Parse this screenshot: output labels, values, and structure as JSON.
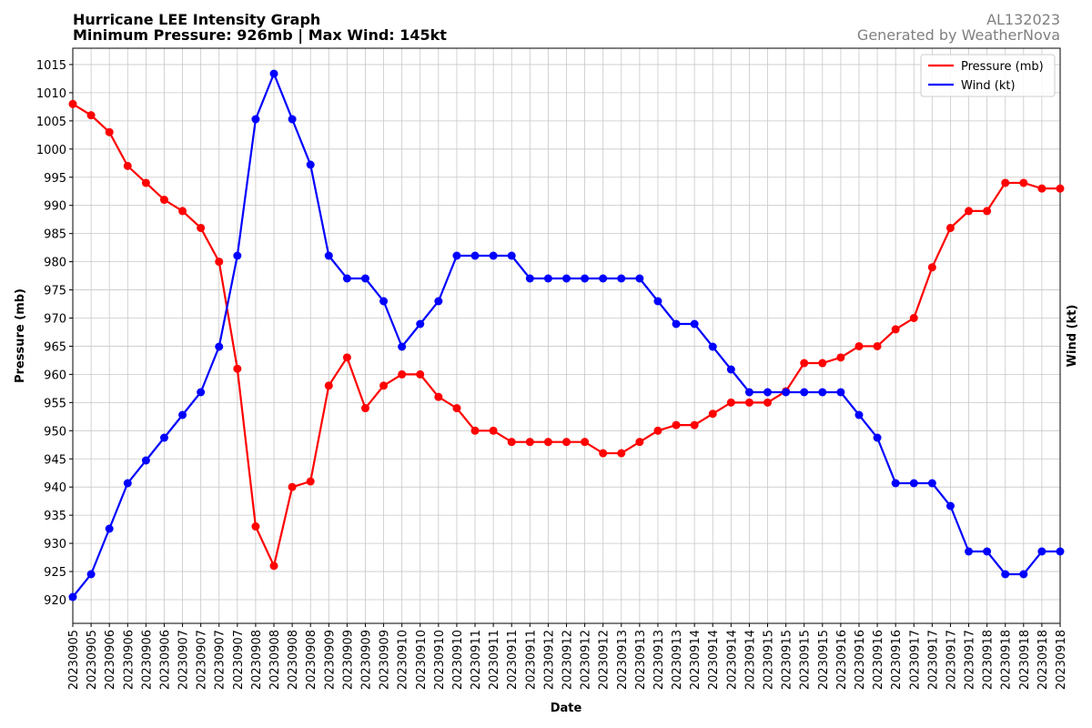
{
  "chart_data": {
    "type": "line",
    "title": "Hurricane LEE Intensity Graph",
    "subtitle": "Minimum Pressure: 926mb | Max Wind: 145kt",
    "storm_id": "AL132023",
    "credit": "Generated by WeatherNova",
    "x_label": "Date",
    "y_label": "Pressure (mb)",
    "y2_label": "Wind (kt)",
    "categories": [
      "20230905",
      "20230905",
      "20230906",
      "20230906",
      "20230906",
      "20230906",
      "20230907",
      "20230907",
      "20230907",
      "20230907",
      "20230908",
      "20230908",
      "20230908",
      "20230908",
      "20230909",
      "20230909",
      "20230909",
      "20230909",
      "20230910",
      "20230910",
      "20230910",
      "20230910",
      "20230911",
      "20230911",
      "20230911",
      "20230911",
      "20230912",
      "20230912",
      "20230912",
      "20230912",
      "20230913",
      "20230913",
      "20230913",
      "20230913",
      "20230914",
      "20230914",
      "20230914",
      "20230914",
      "20230915",
      "20230915",
      "20230915",
      "20230915",
      "20230916",
      "20230916",
      "20230916",
      "20230916",
      "20230917",
      "20230917",
      "20230917",
      "20230917",
      "20230918",
      "20230918",
      "20230918",
      "20230918",
      "20230918"
    ],
    "series": [
      {
        "name": "Pressure (mb)",
        "color": "#ff0000",
        "values": [
          1008,
          1006,
          1003,
          997,
          994,
          991,
          989,
          986,
          980,
          961,
          933,
          926,
          940,
          941,
          958,
          963,
          954,
          958,
          960,
          960,
          956,
          954,
          950,
          950,
          948,
          948,
          948,
          948,
          948,
          946,
          946,
          948,
          950,
          951,
          951,
          953,
          955,
          955,
          955,
          957,
          962,
          962,
          963,
          965,
          965,
          968,
          970,
          979,
          986,
          989,
          989,
          994,
          994,
          993,
          993
        ]
      },
      {
        "name": "Wind (kt)",
        "color": "#0000ff",
        "axis": "y2",
        "values": [
          30,
          35,
          45,
          55,
          60,
          65,
          70,
          75,
          85,
          105,
          135,
          145,
          135,
          125,
          105,
          100,
          100,
          95,
          85,
          90,
          95,
          105,
          105,
          105,
          105,
          100,
          100,
          100,
          100,
          100,
          100,
          100,
          95,
          90,
          90,
          85,
          80,
          75,
          75,
          75,
          75,
          75,
          75,
          70,
          65,
          55,
          55,
          55,
          50,
          40,
          40,
          35,
          35,
          40,
          40
        ]
      }
    ],
    "ylim": [
      915.8,
      1017.9
    ],
    "yticks": [
      920,
      925,
      930,
      935,
      940,
      945,
      950,
      955,
      960,
      965,
      970,
      975,
      980,
      985,
      990,
      995,
      1000,
      1005,
      1010,
      1015
    ],
    "y2lim": [
      24.2,
      150.6
    ],
    "y2ticks": [],
    "grid": true,
    "legend": "upper right"
  }
}
